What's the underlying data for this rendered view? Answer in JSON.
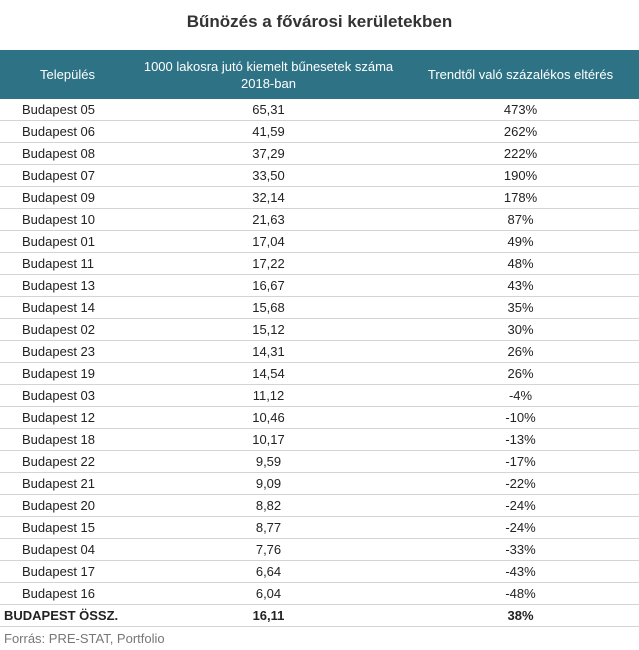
{
  "chart_data": {
    "type": "table",
    "title": "Bűnözés a fővárosi kerületekben",
    "columns": [
      "Település",
      "1000 lakosra jutó kiemelt bűnesetek száma 2018-ban",
      "Trendtől való százalékos eltérés"
    ],
    "rows": [
      {
        "name": "Budapest 05",
        "value": "65,31",
        "pct": "473%"
      },
      {
        "name": "Budapest 06",
        "value": "41,59",
        "pct": "262%"
      },
      {
        "name": "Budapest 08",
        "value": "37,29",
        "pct": "222%"
      },
      {
        "name": "Budapest 07",
        "value": "33,50",
        "pct": "190%"
      },
      {
        "name": "Budapest 09",
        "value": "32,14",
        "pct": "178%"
      },
      {
        "name": "Budapest 10",
        "value": "21,63",
        "pct": "87%"
      },
      {
        "name": "Budapest 01",
        "value": "17,04",
        "pct": "49%"
      },
      {
        "name": "Budapest 11",
        "value": "17,22",
        "pct": "48%"
      },
      {
        "name": "Budapest 13",
        "value": "16,67",
        "pct": "43%"
      },
      {
        "name": "Budapest 14",
        "value": "15,68",
        "pct": "35%"
      },
      {
        "name": "Budapest 02",
        "value": "15,12",
        "pct": "30%"
      },
      {
        "name": "Budapest 23",
        "value": "14,31",
        "pct": "26%"
      },
      {
        "name": "Budapest 19",
        "value": "14,54",
        "pct": "26%"
      },
      {
        "name": "Budapest 03",
        "value": "11,12",
        "pct": "-4%"
      },
      {
        "name": "Budapest 12",
        "value": "10,46",
        "pct": "-10%"
      },
      {
        "name": "Budapest 18",
        "value": "10,17",
        "pct": "-13%"
      },
      {
        "name": "Budapest 22",
        "value": "9,59",
        "pct": "-17%"
      },
      {
        "name": "Budapest 21",
        "value": "9,09",
        "pct": "-22%"
      },
      {
        "name": "Budapest 20",
        "value": "8,82",
        "pct": "-24%"
      },
      {
        "name": "Budapest 15",
        "value": "8,77",
        "pct": "-24%"
      },
      {
        "name": "Budapest 04",
        "value": "7,76",
        "pct": "-33%"
      },
      {
        "name": "Budapest 17",
        "value": "6,64",
        "pct": "-43%"
      },
      {
        "name": "Budapest 16",
        "value": "6,04",
        "pct": "-48%"
      }
    ],
    "total": {
      "name": "BUDAPEST ÖSSZ.",
      "value": "16,11",
      "pct": "38%"
    },
    "source": "Forrás: PRE-STAT, Portfolio",
    "colors": {
      "header_bg": "#2e7385",
      "header_text": "#ffffff",
      "row_border": "#d4d4d4"
    }
  }
}
